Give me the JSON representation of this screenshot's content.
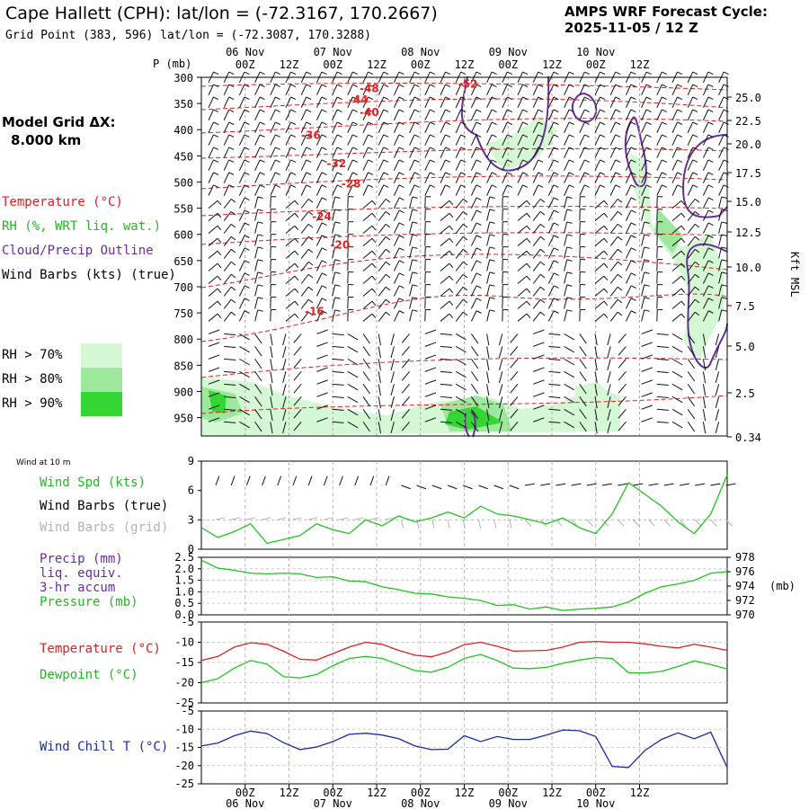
{
  "header": {
    "title": "Cape Hallett (CPH):  lat/lon = (-72.3167, 170.2667)",
    "subtitle": "Grid Point (383, 596) lat/lon = (-72.3087, 170.3288)",
    "cycle_line1": "AMPS WRF Forecast Cycle:",
    "cycle_line2": "2025-11-05 / 12  Z",
    "grid_line1": "Model Grid ΔX:",
    "grid_line2": "8.000 km"
  },
  "colors": {
    "temperature": "#e02020",
    "dewpoint": "#22c322",
    "wind_speed": "#22c322",
    "pressure": "#22c322",
    "precip": "#6a2c9a",
    "windchill": "#1a2aa8",
    "rh70": "#d3f8d3",
    "rh80": "#9de89d",
    "rh90": "#33d633",
    "grid_barbs": "#b4b4b4"
  },
  "legend_upper": {
    "temperature": "Temperature (°C)",
    "rh": "RH (%, WRT liq. wat.)",
    "cloud": "Cloud/Precip Outline",
    "wind": "Wind Barbs (kts) (true)",
    "rh70": "RH > 70%",
    "rh80": "RH > 80%",
    "rh90": "RH > 90%"
  },
  "legend_wind": {
    "heading": "Wind at 10 m",
    "speed": "Wind Spd (kts)",
    "barbs_true": "Wind Barbs (true)",
    "barbs_grid": "Wind Barbs (grid)"
  },
  "legend_precip": {
    "l1": "Precip (mm)",
    "l2": "liq. equiv.",
    "l3": "3-hr accum",
    "l4": "Pressure (mb)"
  },
  "legend_temp": {
    "temperature": "Temperature (°C)",
    "dewpoint": "Dewpoint (°C)"
  },
  "legend_windchill": {
    "label": "Wind Chill T (°C)"
  },
  "chart_data": [
    {
      "type": "heatmap",
      "title": "Vertical cross-section: temperature, RH, cloud outline, wind barbs",
      "ylabel": "P (mb)",
      "y2label": "Kft MSL",
      "p_levels": [
        300,
        350,
        400,
        450,
        500,
        550,
        600,
        650,
        700,
        750,
        800,
        850,
        900,
        950
      ],
      "ylim": [
        300,
        985
      ],
      "kft_levels": [
        25.0,
        22.5,
        20.0,
        17.5,
        15.0,
        12.5,
        10.0,
        7.5,
        5.0,
        2.5,
        0.34
      ],
      "kft_labels": [
        "25.0",
        "22.5",
        "20.0",
        "17.5",
        "15.0",
        "12.5",
        "10.0",
        "7.5",
        "5.0",
        "2.5",
        "0.34"
      ],
      "temperature_labels": [
        {
          "text": "-48",
          "time_h": 34,
          "p": 328
        },
        {
          "text": "-52",
          "time_h": 61,
          "p": 320
        },
        {
          "text": "-44",
          "time_h": 31,
          "p": 350
        },
        {
          "text": "-40",
          "time_h": 34,
          "p": 374
        },
        {
          "text": "-36",
          "time_h": 18,
          "p": 418
        },
        {
          "text": "-32",
          "time_h": 25,
          "p": 472
        },
        {
          "text": "-28",
          "time_h": 29,
          "p": 510
        },
        {
          "text": "-24",
          "time_h": 21,
          "p": 573
        },
        {
          "text": "-20",
          "time_h": 26,
          "p": 627
        },
        {
          "text": "-16",
          "time_h": 19,
          "p": 754
        }
      ]
    },
    {
      "type": "line",
      "title": "Wind at 10 m",
      "x_hours": [
        0,
        3,
        6,
        9,
        12,
        15,
        18,
        21,
        24,
        27,
        30,
        33,
        36,
        39,
        42,
        45,
        48,
        51,
        54,
        57,
        60,
        63,
        66,
        69,
        72,
        75,
        78,
        81,
        84,
        87,
        90,
        93,
        96
      ],
      "series": [
        {
          "name": "Wind Spd (kts)",
          "values": [
            2.2,
            1.2,
            1.8,
            2.6,
            0.6,
            1.0,
            1.4,
            2.6,
            2.0,
            1.6,
            3.0,
            2.4,
            3.4,
            2.8,
            3.2,
            3.8,
            3.2,
            4.4,
            3.6,
            3.4,
            3.0,
            2.6,
            3.2,
            2.2,
            1.6,
            3.6,
            6.8,
            5.6,
            4.4,
            2.8,
            1.6,
            3.6,
            7.6
          ]
        }
      ],
      "ylim": [
        0,
        9
      ],
      "yticks": [
        "0",
        "3",
        "6",
        "9"
      ]
    },
    {
      "type": "line",
      "title": "Precip and Pressure",
      "x_hours": [
        0,
        3,
        6,
        9,
        12,
        15,
        18,
        21,
        24,
        27,
        30,
        33,
        36,
        39,
        42,
        45,
        48,
        51,
        54,
        57,
        60,
        63,
        66,
        69,
        72,
        75,
        78,
        81,
        84,
        87,
        90,
        93,
        96
      ],
      "series": [
        {
          "name": "Pressure (mb)",
          "axis": "right",
          "values": [
            977.6,
            976.5,
            976.2,
            975.8,
            975.7,
            975.8,
            975.7,
            975.2,
            975.3,
            974.7,
            974.6,
            973.9,
            973.5,
            973.0,
            972.9,
            972.5,
            972.3,
            972.0,
            971.3,
            971.4,
            970.8,
            971.1,
            970.6,
            970.8,
            970.9,
            971.1,
            971.8,
            973.0,
            973.9,
            974.3,
            974.8,
            975.8,
            976.0
          ]
        },
        {
          "name": "Precip (mm)",
          "axis": "left",
          "values": [
            0,
            0,
            0,
            0,
            0,
            0,
            0,
            0,
            0,
            0,
            0,
            0,
            0,
            0,
            0,
            0,
            0.02,
            0.03,
            0,
            0,
            0,
            0,
            0,
            0,
            0,
            0,
            0,
            0,
            0,
            0,
            0,
            0,
            0
          ]
        }
      ],
      "ylim": [
        0,
        2.5
      ],
      "y2lim": [
        970,
        978
      ],
      "yticks": [
        "0.0",
        "0.5",
        "1.0",
        "1.5",
        "2.0",
        "2.5"
      ],
      "y2ticks": [
        "970",
        "972",
        "974",
        "976",
        "978"
      ],
      "y2label": "(mb)"
    },
    {
      "type": "line",
      "title": "Temperature and Dewpoint",
      "x_hours": [
        0,
        3,
        6,
        9,
        12,
        15,
        18,
        21,
        24,
        27,
        30,
        33,
        36,
        39,
        42,
        45,
        48,
        51,
        54,
        57,
        60,
        63,
        66,
        69,
        72,
        75,
        78,
        81,
        84,
        87,
        90,
        93,
        96
      ],
      "series": [
        {
          "name": "Temperature (°C)",
          "values": [
            -14.5,
            -13.5,
            -11.2,
            -10.1,
            -10.5,
            -12.2,
            -14.2,
            -14.4,
            -12.8,
            -11.2,
            -10.0,
            -10.5,
            -12.0,
            -13.2,
            -13.6,
            -12.4,
            -10.6,
            -10.0,
            -11.0,
            -12.2,
            -12.1,
            -12.0,
            -11.2,
            -10.0,
            -9.8,
            -10.0,
            -10.0,
            -10.4,
            -11.0,
            -11.4,
            -10.5,
            -11.2,
            -12.0
          ]
        },
        {
          "name": "Dewpoint (°C)",
          "values": [
            -20.0,
            -19.0,
            -16.4,
            -14.5,
            -15.4,
            -18.5,
            -18.8,
            -18.0,
            -15.8,
            -14.0,
            -13.5,
            -14.0,
            -15.5,
            -17.0,
            -17.4,
            -16.2,
            -14.0,
            -13.0,
            -14.5,
            -16.4,
            -16.5,
            -16.2,
            -15.2,
            -14.4,
            -13.8,
            -14.0,
            -17.5,
            -17.6,
            -17.2,
            -16.0,
            -14.6,
            -15.5,
            -16.6
          ]
        }
      ],
      "ylim": [
        -25,
        -5
      ],
      "yticks": [
        "-5",
        "-10",
        "-15",
        "-20",
        "-25"
      ]
    },
    {
      "type": "line",
      "title": "Wind Chill",
      "x_hours": [
        0,
        3,
        6,
        9,
        12,
        15,
        18,
        21,
        24,
        27,
        30,
        33,
        36,
        39,
        42,
        45,
        48,
        51,
        54,
        57,
        60,
        63,
        66,
        69,
        72,
        75,
        78,
        81,
        84,
        87,
        90,
        93,
        96
      ],
      "series": [
        {
          "name": "Wind Chill T (°C)",
          "values": [
            -14.6,
            -13.8,
            -11.8,
            -10.5,
            -11.2,
            -13.7,
            -15.6,
            -14.9,
            -13.4,
            -11.4,
            -11.1,
            -11.6,
            -12.6,
            -14.6,
            -15.6,
            -15.5,
            -11.8,
            -13.4,
            -12.0,
            -12.8,
            -12.8,
            -11.6,
            -10.2,
            -10.4,
            -12.0,
            -20.2,
            -20.5,
            -15.8,
            -12.8,
            -11.0,
            -12.6,
            -10.8,
            -20.5
          ]
        }
      ],
      "ylim": [
        -25,
        -5
      ],
      "yticks": [
        "-5",
        "-10",
        "-15",
        "-20",
        "-25"
      ]
    }
  ],
  "time_axis": {
    "hours": [
      0,
      3,
      6,
      9,
      12,
      15,
      18,
      21,
      24,
      27,
      30,
      33,
      36,
      39,
      42,
      45,
      48,
      51,
      54,
      57,
      60,
      63,
      66,
      69,
      72,
      75,
      78,
      81,
      84,
      87,
      90,
      93,
      96
    ],
    "tick_labels": [
      {
        "hour": 6,
        "label": "00Z"
      },
      {
        "hour": 18,
        "label": "12Z"
      },
      {
        "hour": 30,
        "label": "00Z"
      },
      {
        "hour": 42,
        "label": "12Z"
      },
      {
        "hour": 54,
        "label": "00Z"
      },
      {
        "hour": 66,
        "label": "12Z"
      },
      {
        "hour": 78,
        "label": "00Z"
      },
      {
        "hour": 90,
        "label": "12Z"
      },
      {
        "hour": 102,
        "label": "00Z"
      },
      {
        "hour": 114,
        "label": "12Z"
      }
    ],
    "dates": [
      {
        "hour": 6,
        "label": "06 Nov"
      },
      {
        "hour": 30,
        "label": "07 Nov"
      },
      {
        "hour": 54,
        "label": "08 Nov"
      },
      {
        "hour": 78,
        "label": "09 Nov"
      },
      {
        "hour": 102,
        "label": "10 Nov"
      }
    ]
  }
}
